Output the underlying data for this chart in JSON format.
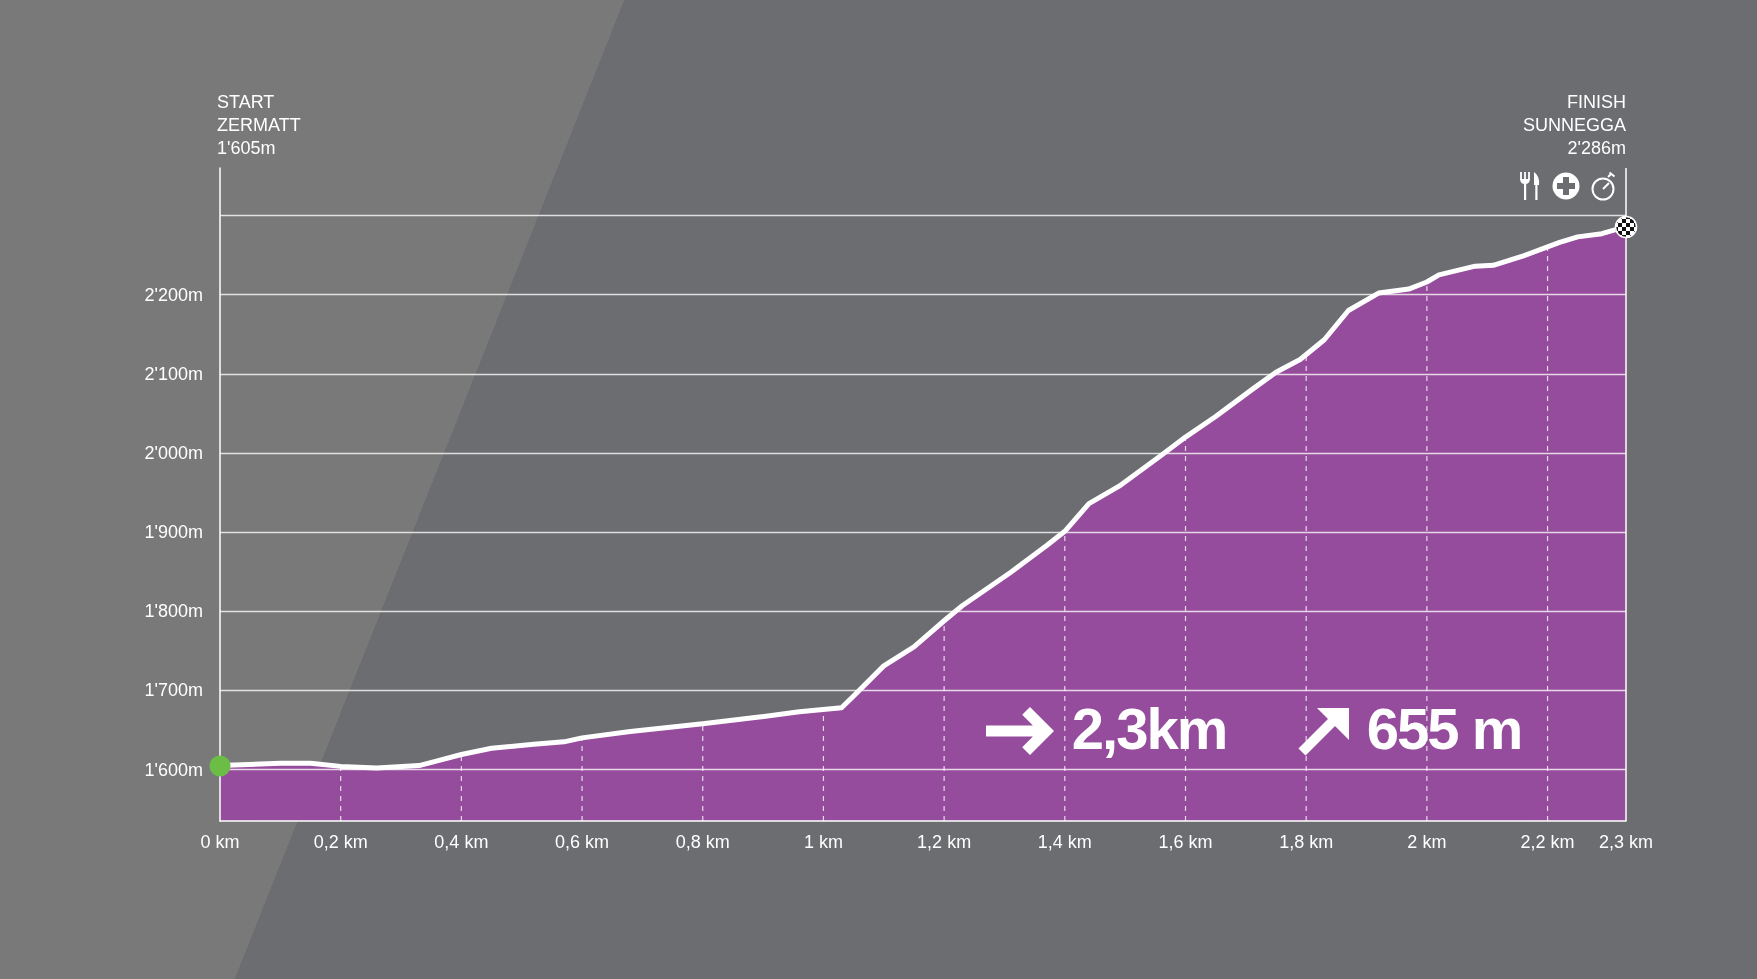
{
  "chart_data": {
    "type": "area",
    "x": [
      0,
      0.1,
      0.15,
      0.2,
      0.26,
      0.33,
      0.36,
      0.4,
      0.45,
      0.52,
      0.57,
      0.6,
      0.68,
      0.8,
      0.89,
      0.96,
      1.03,
      1.05,
      1.1,
      1.15,
      1.2,
      1.23,
      1.31,
      1.37,
      1.4,
      1.44,
      1.49,
      1.56,
      1.6,
      1.65,
      1.71,
      1.75,
      1.79,
      1.83,
      1.87,
      1.92,
      1.97,
      2,
      2.02,
      2.08,
      2.11,
      2.16,
      2.22,
      2.25,
      2.29,
      2.33
    ],
    "values": [
      1605,
      1608,
      1608,
      1604,
      1602,
      1605,
      1611,
      1619,
      1627,
      1632,
      1635,
      1640,
      1648,
      1658,
      1666,
      1673,
      1678,
      1693,
      1731,
      1755,
      1788,
      1807,
      1849,
      1883,
      1901,
      1936,
      1958,
      1997,
      2020,
      2046,
      2080,
      2102,
      2118,
      2143,
      2180,
      2202,
      2207,
      2216,
      2225,
      2236,
      2237,
      2249,
      2266,
      2273,
      2277,
      2286
    ],
    "color": "#954c9c",
    "xlim": [
      0,
      2.33
    ],
    "xticks": [
      {
        "value": 0,
        "label": "0 km"
      },
      {
        "value": 0.2,
        "label": "0,2 km"
      },
      {
        "value": 0.4,
        "label": "0,4 km"
      },
      {
        "value": 0.6,
        "label": "0,6 km"
      },
      {
        "value": 0.8,
        "label": "0,8 km"
      },
      {
        "value": 1,
        "label": "1 km"
      },
      {
        "value": 1.2,
        "label": "1,2 km"
      },
      {
        "value": 1.4,
        "label": "1,4 km"
      },
      {
        "value": 1.6,
        "label": "1,6 km"
      },
      {
        "value": 1.8,
        "label": "1,8 km"
      },
      {
        "value": 2,
        "label": "2 km"
      },
      {
        "value": 2.2,
        "label": "2,2 km"
      },
      {
        "value": 2.33,
        "label": "2,3 km"
      }
    ],
    "ylim": [
      1535,
      2360
    ],
    "yticks": [
      {
        "value": 1600,
        "label": "1'600m"
      },
      {
        "value": 1700,
        "label": "1'700m"
      },
      {
        "value": 1800,
        "label": "1'800m"
      },
      {
        "value": 1900,
        "label": "1'900m"
      },
      {
        "value": 2000,
        "label": "2'000m"
      },
      {
        "value": 2100,
        "label": "2'100m"
      },
      {
        "value": 2200,
        "label": "2'200m"
      },
      {
        "value": 2300,
        "label": null
      }
    ],
    "grid": true,
    "marker": "none",
    "annotations": [
      "START\nZERMATT\n1'605m",
      "FINISH\nSUNNEGGA\n2'286m",
      "2,3km",
      "655 m"
    ]
  }
}
